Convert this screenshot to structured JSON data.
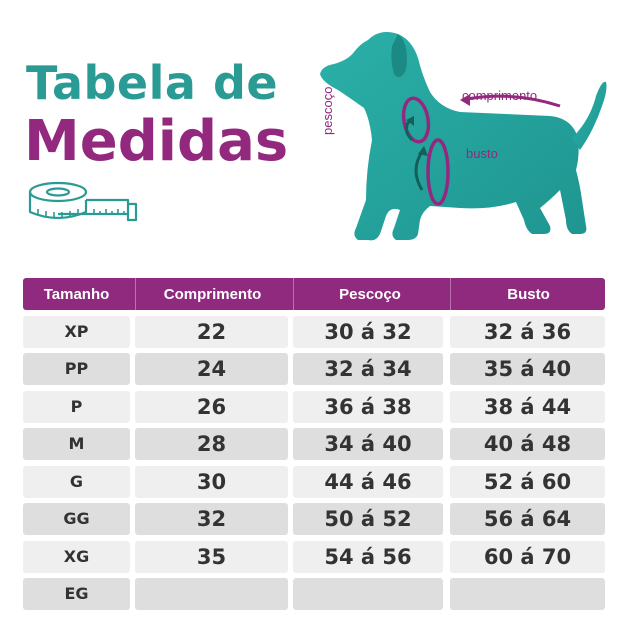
{
  "title": {
    "line1": "Tabela de",
    "line2": "Medidas"
  },
  "dog_labels": {
    "length": "comprimento",
    "neck": "pescoço",
    "chest": "busto"
  },
  "colors": {
    "teal": "#2a9a94",
    "purple": "#93297f",
    "header_bg": "#8f2a7f",
    "row_light": "#efefef",
    "row_dark": "#dedede"
  },
  "icons": [
    "measuring-tape-icon",
    "dog-illustration"
  ],
  "table": {
    "headers": [
      "Tamanho",
      "Comprimento",
      "Pescoço",
      "Busto"
    ],
    "rows": [
      [
        "XP",
        "22",
        "30 á 32",
        "32 á 36"
      ],
      [
        "PP",
        "24",
        "32 á 34",
        "35 á 40"
      ],
      [
        "P",
        "26",
        "36 á 38",
        "38 á 44"
      ],
      [
        "M",
        "28",
        "34 á 40",
        "40 á 48"
      ],
      [
        "G",
        "30",
        "44 á 46",
        "52 á 60"
      ],
      [
        "GG",
        "32",
        "50 á 52",
        "56 á 64"
      ],
      [
        "XG",
        "35",
        "54 á 56",
        "60 á 70"
      ],
      [
        "EG",
        "",
        "",
        ""
      ]
    ]
  }
}
